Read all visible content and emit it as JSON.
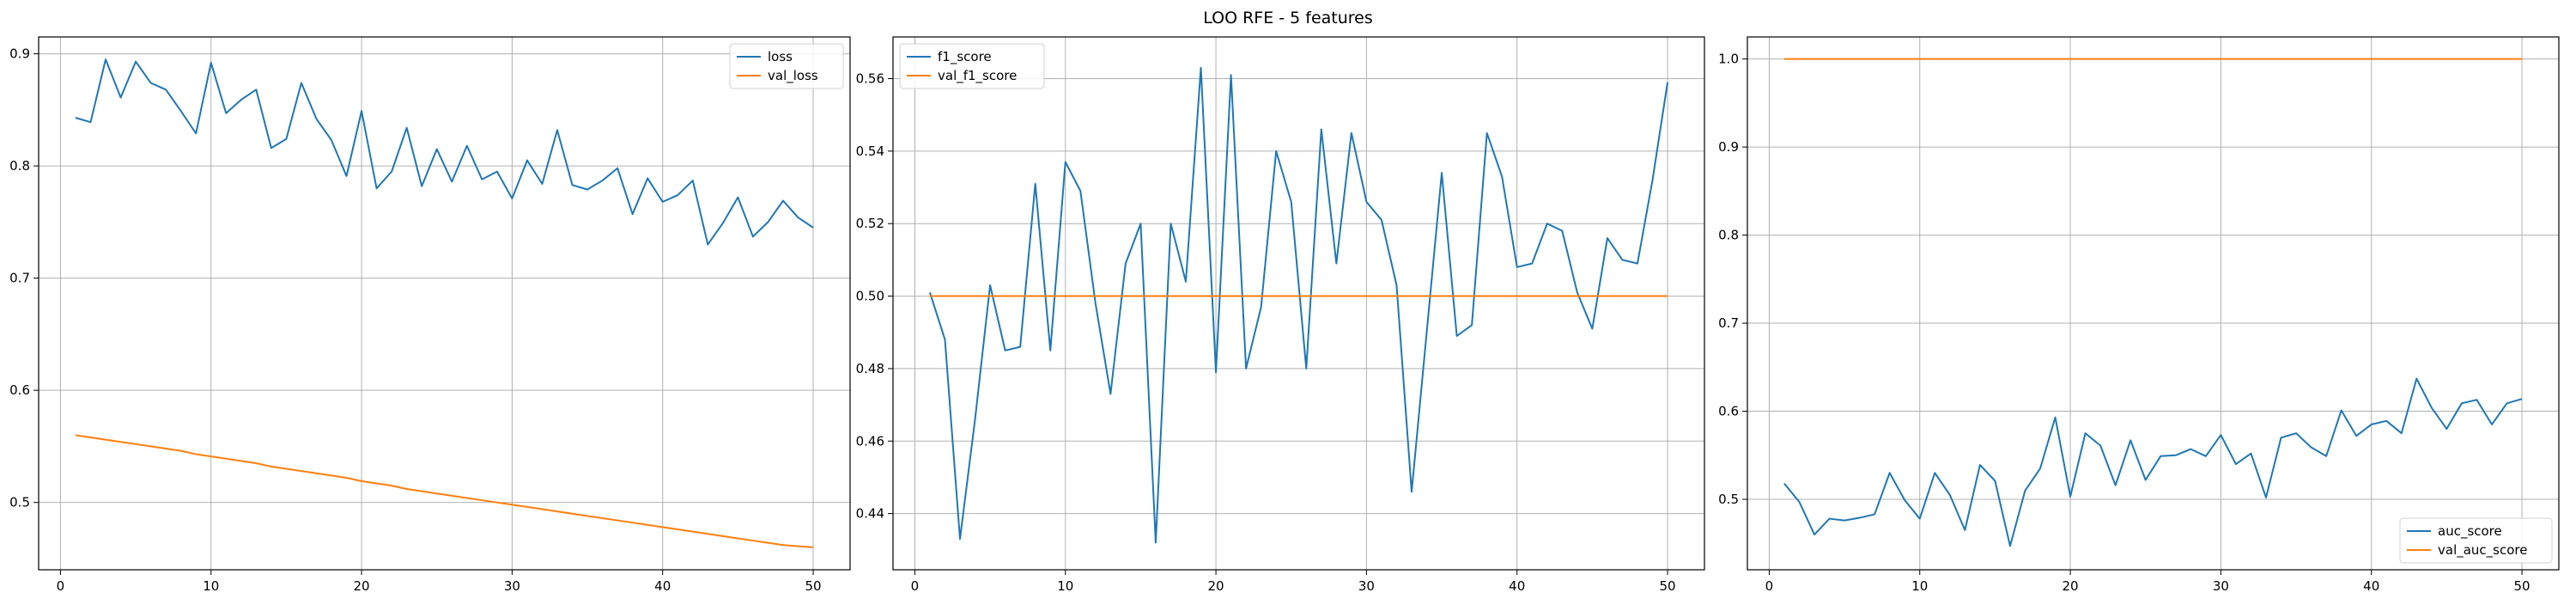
{
  "figure": {
    "suptitle": "LOO RFE - 5 features"
  },
  "colors": {
    "train": "#1f77b4",
    "val": "#ff7f0e",
    "grid": "#b0b0b0"
  },
  "chart_data": [
    {
      "type": "line",
      "title": "",
      "xlabel": "",
      "ylabel": "",
      "x": [
        1,
        2,
        3,
        4,
        5,
        6,
        7,
        8,
        9,
        10,
        11,
        12,
        13,
        14,
        15,
        16,
        17,
        18,
        19,
        20,
        21,
        22,
        23,
        24,
        25,
        26,
        27,
        28,
        29,
        30,
        31,
        32,
        33,
        34,
        35,
        36,
        37,
        38,
        39,
        40,
        41,
        42,
        43,
        44,
        45,
        46,
        47,
        48,
        49,
        50
      ],
      "xlim": [
        -1.45,
        52.45
      ],
      "ylim": [
        0.44,
        0.915
      ],
      "xticks": [
        0,
        10,
        20,
        30,
        40,
        50
      ],
      "xtick_labels": [
        "0",
        "10",
        "20",
        "30",
        "40",
        "50"
      ],
      "yticks": [
        0.5,
        0.6,
        0.7,
        0.8,
        0.9
      ],
      "ytick_labels": [
        "0.5",
        "0.6",
        "0.7",
        "0.8",
        "0.9"
      ],
      "grid": true,
      "legend": "top-right",
      "series": [
        {
          "name": "loss",
          "color": "#1f77b4",
          "values": [
            0.843,
            0.839,
            0.895,
            0.861,
            0.893,
            0.874,
            0.868,
            0.849,
            0.829,
            0.892,
            0.847,
            0.859,
            0.868,
            0.816,
            0.824,
            0.874,
            0.842,
            0.823,
            0.791,
            0.849,
            0.78,
            0.795,
            0.834,
            0.782,
            0.815,
            0.786,
            0.818,
            0.788,
            0.795,
            0.771,
            0.805,
            0.784,
            0.832,
            0.783,
            0.779,
            0.787,
            0.798,
            0.757,
            0.789,
            0.768,
            0.774,
            0.787,
            0.73,
            0.749,
            0.772,
            0.737,
            0.75,
            0.769,
            0.754,
            0.745
          ]
        },
        {
          "name": "val_loss",
          "color": "#ff7f0e",
          "values": [
            0.56,
            0.558,
            0.556,
            0.554,
            0.552,
            0.55,
            0.548,
            0.546,
            0.543,
            0.541,
            0.539,
            0.537,
            0.535,
            0.532,
            0.53,
            0.528,
            0.526,
            0.524,
            0.522,
            0.519,
            0.517,
            0.515,
            0.512,
            0.51,
            0.508,
            0.506,
            0.504,
            0.502,
            0.5,
            0.498,
            0.496,
            0.494,
            0.492,
            0.49,
            0.488,
            0.486,
            0.484,
            0.482,
            0.48,
            0.478,
            0.476,
            0.474,
            0.472,
            0.47,
            0.468,
            0.466,
            0.464,
            0.462,
            0.461,
            0.46
          ]
        }
      ]
    },
    {
      "type": "line",
      "title": "",
      "xlabel": "",
      "ylabel": "",
      "x": [
        1,
        2,
        3,
        4,
        5,
        6,
        7,
        8,
        9,
        10,
        11,
        12,
        13,
        14,
        15,
        16,
        17,
        18,
        19,
        20,
        21,
        22,
        23,
        24,
        25,
        26,
        27,
        28,
        29,
        30,
        31,
        32,
        33,
        34,
        35,
        36,
        37,
        38,
        39,
        40,
        41,
        42,
        43,
        44,
        45,
        46,
        47,
        48,
        49,
        50
      ],
      "xlim": [
        -1.45,
        52.45
      ],
      "ylim": [
        0.4245,
        0.5715
      ],
      "xticks": [
        0,
        10,
        20,
        30,
        40,
        50
      ],
      "xtick_labels": [
        "0",
        "10",
        "20",
        "30",
        "40",
        "50"
      ],
      "yticks": [
        0.44,
        0.46,
        0.48,
        0.5,
        0.52,
        0.54,
        0.56
      ],
      "ytick_labels": [
        "0.44",
        "0.46",
        "0.48",
        "0.50",
        "0.52",
        "0.54",
        "0.56"
      ],
      "grid": true,
      "legend": "top-left",
      "series": [
        {
          "name": "f1_score",
          "color": "#1f77b4",
          "values": [
            0.501,
            0.488,
            0.433,
            0.466,
            0.503,
            0.485,
            0.486,
            0.531,
            0.485,
            0.537,
            0.529,
            0.498,
            0.473,
            0.509,
            0.52,
            0.432,
            0.52,
            0.504,
            0.563,
            0.479,
            0.561,
            0.48,
            0.497,
            0.54,
            0.526,
            0.48,
            0.546,
            0.509,
            0.545,
            0.526,
            0.521,
            0.503,
            0.446,
            0.49,
            0.534,
            0.489,
            0.492,
            0.545,
            0.533,
            0.508,
            0.509,
            0.52,
            0.518,
            0.501,
            0.491,
            0.516,
            0.51,
            0.509,
            0.532,
            0.559
          ]
        },
        {
          "name": "val_f1_score",
          "color": "#ff7f0e",
          "values": [
            0.5,
            0.5,
            0.5,
            0.5,
            0.5,
            0.5,
            0.5,
            0.5,
            0.5,
            0.5,
            0.5,
            0.5,
            0.5,
            0.5,
            0.5,
            0.5,
            0.5,
            0.5,
            0.5,
            0.5,
            0.5,
            0.5,
            0.5,
            0.5,
            0.5,
            0.5,
            0.5,
            0.5,
            0.5,
            0.5,
            0.5,
            0.5,
            0.5,
            0.5,
            0.5,
            0.5,
            0.5,
            0.5,
            0.5,
            0.5,
            0.5,
            0.5,
            0.5,
            0.5,
            0.5,
            0.5,
            0.5,
            0.5,
            0.5,
            0.5
          ]
        }
      ]
    },
    {
      "type": "line",
      "title": "",
      "xlabel": "",
      "ylabel": "",
      "x": [
        1,
        2,
        3,
        4,
        5,
        6,
        7,
        8,
        9,
        10,
        11,
        12,
        13,
        14,
        15,
        16,
        17,
        18,
        19,
        20,
        21,
        22,
        23,
        24,
        25,
        26,
        27,
        28,
        29,
        30,
        31,
        32,
        33,
        34,
        35,
        36,
        37,
        38,
        39,
        40,
        41,
        42,
        43,
        44,
        45,
        46,
        47,
        48,
        49,
        50
      ],
      "xlim": [
        -1.45,
        52.45
      ],
      "ylim": [
        0.42,
        1.025
      ],
      "xticks": [
        0,
        10,
        20,
        30,
        40,
        50
      ],
      "xtick_labels": [
        "0",
        "10",
        "20",
        "30",
        "40",
        "50"
      ],
      "yticks": [
        0.5,
        0.6,
        0.7,
        0.8,
        0.9,
        1.0
      ],
      "ytick_labels": [
        "0.5",
        "0.6",
        "0.7",
        "0.8",
        "0.9",
        "1.0"
      ],
      "grid": true,
      "legend": "bottom-right",
      "series": [
        {
          "name": "auc_score",
          "color": "#1f77b4",
          "values": [
            0.518,
            0.497,
            0.46,
            0.478,
            0.476,
            0.479,
            0.483,
            0.53,
            0.499,
            0.478,
            0.53,
            0.505,
            0.465,
            0.539,
            0.521,
            0.447,
            0.51,
            0.535,
            0.593,
            0.503,
            0.575,
            0.561,
            0.516,
            0.567,
            0.522,
            0.549,
            0.55,
            0.557,
            0.549,
            0.573,
            0.54,
            0.552,
            0.502,
            0.57,
            0.575,
            0.559,
            0.549,
            0.601,
            0.572,
            0.585,
            0.589,
            0.575,
            0.637,
            0.604,
            0.58,
            0.609,
            0.613,
            0.585,
            0.609,
            0.614
          ]
        },
        {
          "name": "val_auc_score",
          "color": "#ff7f0e",
          "values": [
            1.0,
            1.0,
            1.0,
            1.0,
            1.0,
            1.0,
            1.0,
            1.0,
            1.0,
            1.0,
            1.0,
            1.0,
            1.0,
            1.0,
            1.0,
            1.0,
            1.0,
            1.0,
            1.0,
            1.0,
            1.0,
            1.0,
            1.0,
            1.0,
            1.0,
            1.0,
            1.0,
            1.0,
            1.0,
            1.0,
            1.0,
            1.0,
            1.0,
            1.0,
            1.0,
            1.0,
            1.0,
            1.0,
            1.0,
            1.0,
            1.0,
            1.0,
            1.0,
            1.0,
            1.0,
            1.0,
            1.0,
            1.0,
            1.0,
            1.0
          ]
        }
      ]
    }
  ]
}
